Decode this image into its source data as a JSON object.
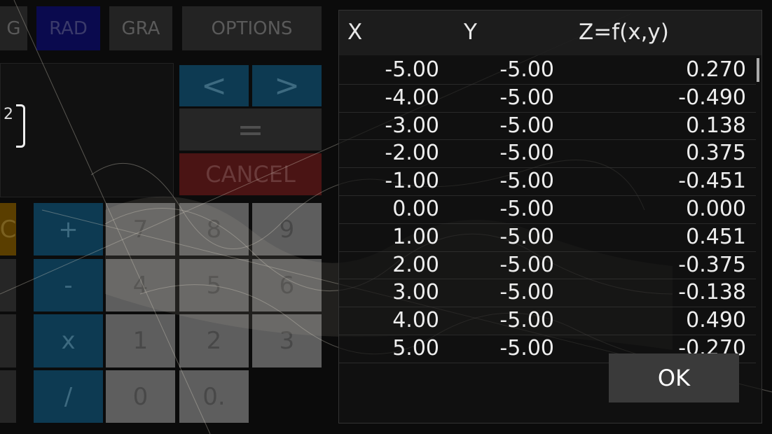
{
  "calculator": {
    "top_buttons": [
      "G",
      "RAD",
      "GRA",
      "OPTIONS"
    ],
    "display_exponent": "2",
    "nav": {
      "left": "<",
      "right": ">"
    },
    "equals": "=",
    "cancel": "CANCEL",
    "keys": {
      "clear": "C",
      "plus": "+",
      "minus": "-",
      "times": "x",
      "divide": "/",
      "digits": [
        "7",
        "8",
        "9",
        "4",
        "5",
        "6",
        "1",
        "2",
        "3",
        "0",
        "0."
      ]
    }
  },
  "colors": {
    "rad_active": "#0a0a4e",
    "blue_key": "#0d3a52",
    "cancel": "#5a1818",
    "clear": "#6a4a00"
  },
  "dialog": {
    "headers": [
      "X",
      "Y",
      "Z=f(x,y)"
    ],
    "rows": [
      [
        "-5.00",
        "-5.00",
        "0.270"
      ],
      [
        "-4.00",
        "-5.00",
        "-0.490"
      ],
      [
        "-3.00",
        "-5.00",
        "0.138"
      ],
      [
        "-2.00",
        "-5.00",
        "0.375"
      ],
      [
        "-1.00",
        "-5.00",
        "-0.451"
      ],
      [
        "0.00",
        "-5.00",
        "0.000"
      ],
      [
        "1.00",
        "-5.00",
        "0.451"
      ],
      [
        "2.00",
        "-5.00",
        "-0.375"
      ],
      [
        "3.00",
        "-5.00",
        "-0.138"
      ],
      [
        "4.00",
        "-5.00",
        "0.490"
      ],
      [
        "5.00",
        "-5.00",
        "-0.270"
      ]
    ],
    "ok_label": "OK"
  }
}
